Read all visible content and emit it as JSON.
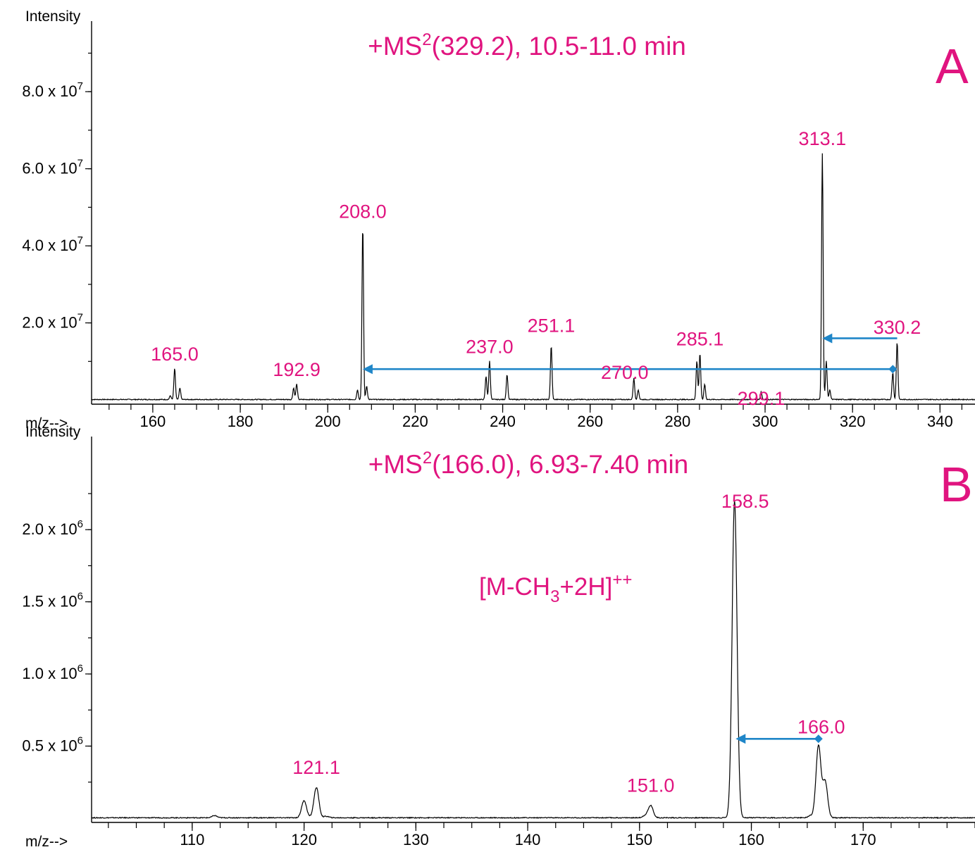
{
  "chart_data": [
    {
      "type": "line",
      "panel_letter": "A",
      "title_prefix": "+MS",
      "title_sup": "2",
      "title_rest": "(329.2), 10.5-11.0 min",
      "ylabel": "Intensity",
      "xlabel": "m/z-->",
      "xlim": [
        146,
        348
      ],
      "ylim": [
        0,
        91000000.0
      ],
      "x_ticks": [
        160,
        180,
        200,
        220,
        240,
        260,
        280,
        300,
        320,
        340
      ],
      "y_ticks": [
        {
          "value": 20000000.0,
          "mantissa": "2.0 x 10",
          "exp": "7"
        },
        {
          "value": 40000000.0,
          "mantissa": "4.0 x 10",
          "exp": "7"
        },
        {
          "value": 60000000.0,
          "mantissa": "6.0 x 10",
          "exp": "7"
        },
        {
          "value": 80000000.0,
          "mantissa": "8.0 x 10",
          "exp": "7"
        }
      ],
      "peaks": [
        {
          "mz": 165.0,
          "intensity": 8000000.0,
          "label": "165.0"
        },
        {
          "mz": 192.9,
          "intensity": 4000000.0,
          "label": "192.9"
        },
        {
          "mz": 208.0,
          "intensity": 45000000.0,
          "label": "208.0"
        },
        {
          "mz": 237.0,
          "intensity": 10000000.0,
          "label": "237.0"
        },
        {
          "mz": 251.1,
          "intensity": 14000000.0,
          "label": "251.1"
        },
        {
          "mz": 270.0,
          "intensity": 5500000.0,
          "label": "270.0"
        },
        {
          "mz": 285.1,
          "intensity": 12000000.0,
          "label": "285.1"
        },
        {
          "mz": 299.1,
          "intensity": 2000000.0,
          "label": "299.1"
        },
        {
          "mz": 313.1,
          "intensity": 64000000.0,
          "label": "313.1"
        },
        {
          "mz": 330.2,
          "intensity": 15000000.0,
          "label": "330.2"
        }
      ],
      "minor_peaks": [
        {
          "mz": 164.0,
          "intensity": 1000000.0
        },
        {
          "mz": 166.2,
          "intensity": 3000000.0
        },
        {
          "mz": 192.2,
          "intensity": 3000000.0
        },
        {
          "mz": 206.8,
          "intensity": 2500000.0
        },
        {
          "mz": 208.9,
          "intensity": 3500000.0
        },
        {
          "mz": 236.2,
          "intensity": 6000000.0
        },
        {
          "mz": 241.0,
          "intensity": 6500000.0
        },
        {
          "mz": 271.0,
          "intensity": 2500000.0
        },
        {
          "mz": 284.4,
          "intensity": 10000000.0
        },
        {
          "mz": 286.2,
          "intensity": 4000000.0
        },
        {
          "mz": 314.0,
          "intensity": 10000000.0
        },
        {
          "mz": 314.8,
          "intensity": 2500000.0
        },
        {
          "mz": 329.2,
          "intensity": 7000000.0
        }
      ],
      "arrows": [
        {
          "from_mz": 329.2,
          "to_mz": 208.0,
          "y": 8000000.0,
          "marker": true
        },
        {
          "from_mz": 330.2,
          "to_mz": 313.1,
          "y": 16000000.0,
          "marker": false
        }
      ],
      "annotations": []
    },
    {
      "type": "line",
      "panel_letter": "B",
      "title_prefix": "+MS",
      "title_sup": "2",
      "title_rest": "(166.0), 6.93-7.40 min",
      "ylabel": "Intensity",
      "xlabel": "m/z-->",
      "xlim": [
        101,
        180
      ],
      "ylim": [
        0,
        2450000.0
      ],
      "x_ticks": [
        110,
        120,
        130,
        140,
        150,
        160,
        170
      ],
      "y_ticks": [
        {
          "value": 500000.0,
          "mantissa": "0.5 x 10",
          "exp": "6"
        },
        {
          "value": 1000000.0,
          "mantissa": "1.0 x 10",
          "exp": "6"
        },
        {
          "value": 1500000.0,
          "mantissa": "1.5 x 10",
          "exp": "6"
        },
        {
          "value": 2000000.0,
          "mantissa": "2.0 x 10",
          "exp": "6"
        }
      ],
      "peaks": [
        {
          "mz": 121.1,
          "intensity": 210000.0,
          "label": "121.1"
        },
        {
          "mz": 151.0,
          "intensity": 85000.0,
          "label": "151.0"
        },
        {
          "mz": 158.5,
          "intensity": 2200000.0,
          "label": "158.5"
        },
        {
          "mz": 166.0,
          "intensity": 500000.0,
          "label": "166.0"
        }
      ],
      "minor_peaks": [
        {
          "mz": 112.0,
          "intensity": 15000.0
        },
        {
          "mz": 120.0,
          "intensity": 120000.0
        },
        {
          "mz": 122.0,
          "intensity": 10000.0
        },
        {
          "mz": 150.5,
          "intensity": 15000.0
        },
        {
          "mz": 165.3,
          "intensity": 15000.0
        },
        {
          "mz": 166.6,
          "intensity": 250000.0
        }
      ],
      "arrows": [
        {
          "from_mz": 166.0,
          "to_mz": 158.6,
          "y": 550000.0,
          "marker": true
        }
      ],
      "annotations": [
        {
          "base": "[M-CH",
          "sub": "3",
          "mid": "+2H]",
          "sup": "++"
        }
      ]
    }
  ]
}
